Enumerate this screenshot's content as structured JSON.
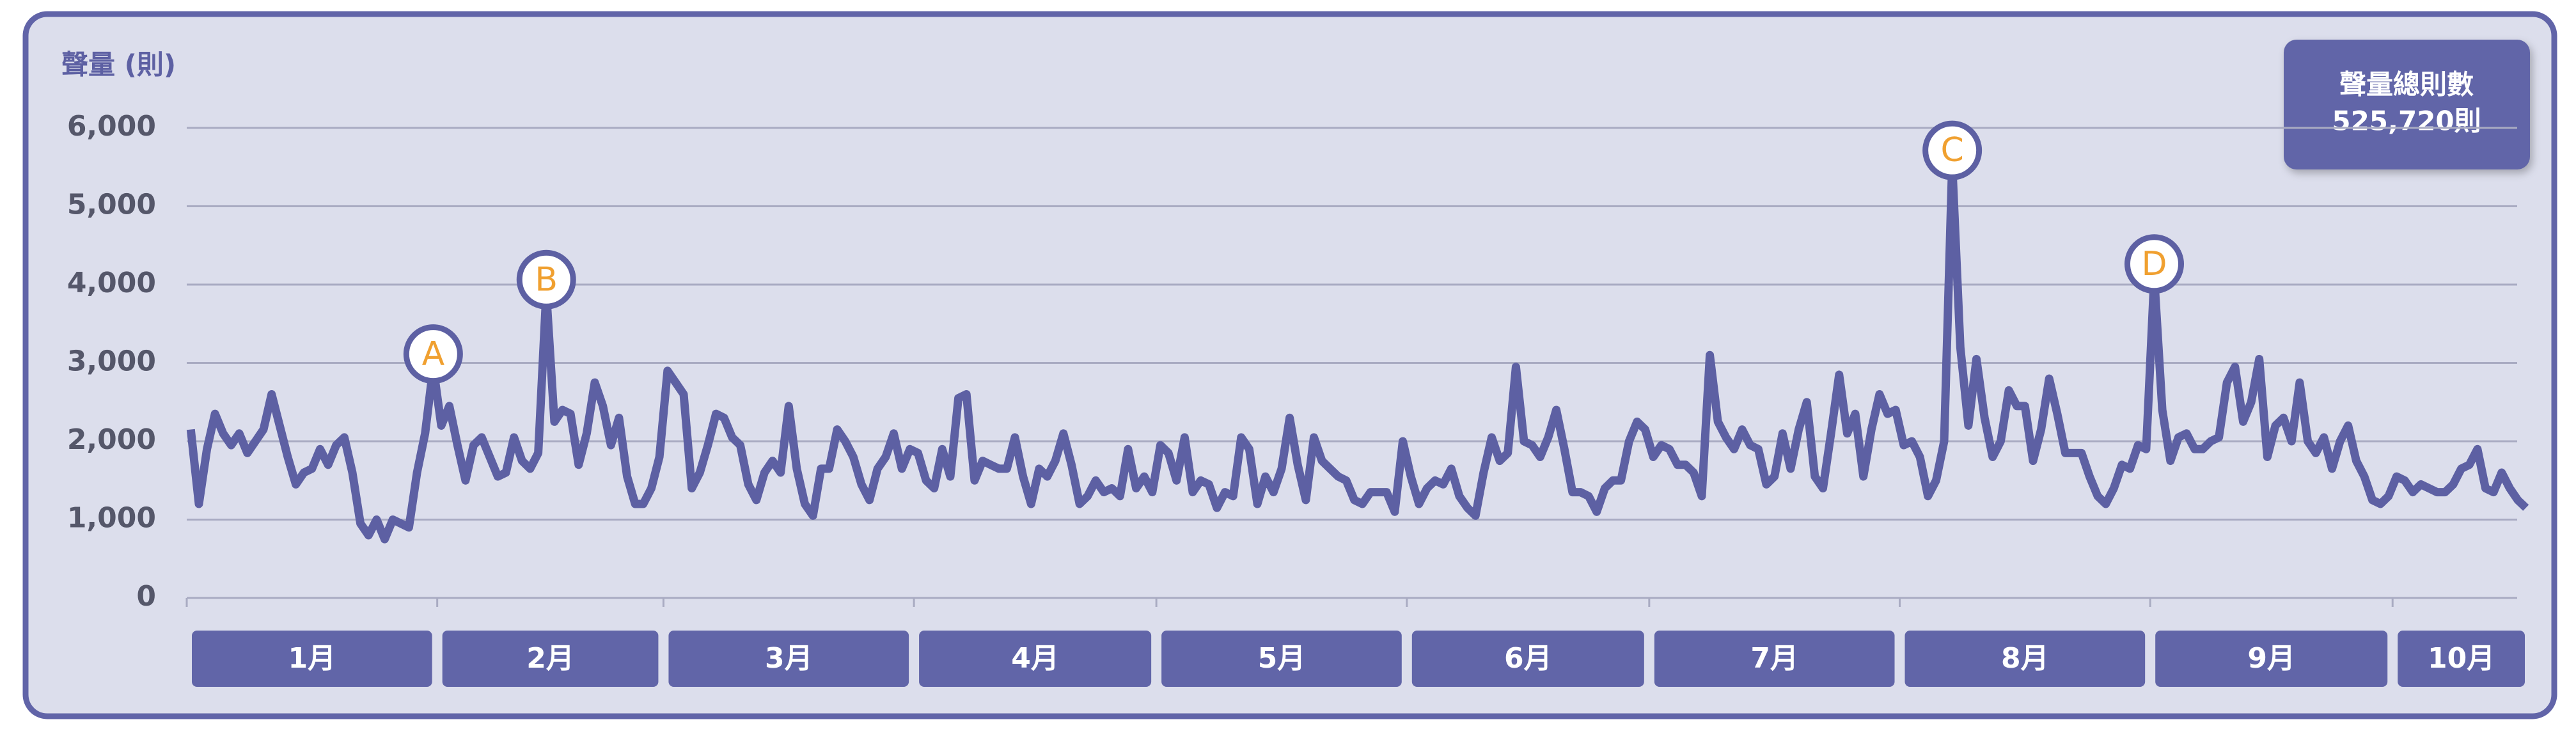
{
  "chart_data": {
    "type": "line",
    "y_label": "聲量 (則)",
    "categories": [
      "1月",
      "2月",
      "3月",
      "4月",
      "5月",
      "6月",
      "7月",
      "8月",
      "9月",
      "10月"
    ],
    "values": [
      [
        2150,
        1200,
        1900,
        2350,
        2100,
        1950,
        2100,
        1850,
        2000,
        2150,
        2600,
        2200,
        1800,
        1450,
        1600,
        1650,
        1900,
        1700,
        1950,
        2050,
        1600,
        950,
        800,
        1000,
        750,
        1000,
        950,
        900,
        1600,
        2100,
        2950
      ],
      [
        2200,
        2450,
        1950,
        1500,
        1950,
        2050,
        1800,
        1550,
        1600,
        2050,
        1750,
        1650,
        1850,
        3900,
        2250,
        2400,
        2350,
        1700,
        2100,
        2750,
        2450,
        1950,
        2300,
        1550,
        1200,
        1200,
        1400,
        1800
      ],
      [
        2900,
        2750,
        2600,
        1400,
        1600,
        1950,
        2350,
        2300,
        2050,
        1950,
        1450,
        1250,
        1600,
        1750,
        1600,
        2450,
        1650,
        1200,
        1050,
        1650,
        1650,
        2150,
        2000,
        1800,
        1450,
        1250,
        1650,
        1800,
        2100,
        1650,
        1900
      ],
      [
        1850,
        1500,
        1400,
        1900,
        1550,
        2550,
        2600,
        1500,
        1750,
        1700,
        1650,
        1650,
        2050,
        1550,
        1200,
        1650,
        1550,
        1750,
        2100,
        1700,
        1200,
        1300,
        1500,
        1350,
        1400,
        1300,
        1900,
        1400,
        1550,
        1350
      ],
      [
        1950,
        1850,
        1500,
        2050,
        1350,
        1500,
        1450,
        1150,
        1350,
        1300,
        2050,
        1900,
        1200,
        1550,
        1350,
        1650,
        2300,
        1700,
        1250,
        2050,
        1750,
        1650,
        1550,
        1500,
        1250,
        1200,
        1350,
        1350,
        1350,
        1100,
        2000
      ],
      [
        1550,
        1200,
        1400,
        1500,
        1450,
        1650,
        1300,
        1150,
        1050,
        1600,
        2050,
        1750,
        1850,
        2950,
        2000,
        1950,
        1800,
        2050,
        2400,
        1900,
        1350,
        1350,
        1300,
        1100,
        1400,
        1500,
        1500,
        2000,
        2250,
        2150
      ],
      [
        1800,
        1950,
        1900,
        1700,
        1700,
        1600,
        1300,
        3100,
        2250,
        2050,
        1900,
        2150,
        1950,
        1900,
        1450,
        1550,
        2100,
        1650,
        2150,
        2500,
        1550,
        1400,
        2100,
        2850,
        2100,
        2350,
        1550,
        2150,
        2600,
        2350,
        2400
      ],
      [
        1950,
        2000,
        1800,
        1300,
        1500,
        2000,
        5550,
        3200,
        2200,
        3050,
        2300,
        1800,
        2000,
        2650,
        2450,
        2450,
        1750,
        2150,
        2800,
        2350,
        1850,
        1850,
        1850,
        1550,
        1300,
        1200,
        1400,
        1700,
        1650,
        1950,
        1900
      ],
      [
        4100,
        2400,
        1750,
        2050,
        2100,
        1900,
        1900,
        2000,
        2050,
        2750,
        2950,
        2250,
        2500,
        3050,
        1800,
        2200,
        2300,
        2000,
        2750,
        2000,
        1850,
        2050,
        1650,
        2000,
        2200,
        1750,
        1550,
        1250,
        1200,
        1300
      ],
      [
        1550,
        1500,
        1350,
        1450,
        1400,
        1350,
        1350,
        1450,
        1650,
        1700,
        1900,
        1400,
        1350,
        1600,
        1400,
        1250,
        1150
      ]
    ],
    "color": "#5d60a3",
    "ylim": [
      0,
      6000
    ],
    "yticks": [
      0,
      {
        "value": 1000,
        "label": "1,000"
      },
      {
        "value": 2000,
        "label": "2,000"
      },
      {
        "value": 3000,
        "label": "3,000"
      },
      {
        "value": 4000,
        "label": "4,000"
      },
      {
        "value": 5000,
        "label": "5,000"
      },
      {
        "value": 6000,
        "label": "6,000"
      }
    ],
    "grid": true,
    "annotations": [
      {
        "label": "A",
        "month": "1月"
      },
      {
        "label": "B",
        "month": "2月"
      },
      {
        "label": "C",
        "month": "8月"
      },
      {
        "label": "D",
        "month": "9月"
      }
    ],
    "total": {
      "title": "聲量總則數",
      "value_label": "525,720則"
    }
  }
}
